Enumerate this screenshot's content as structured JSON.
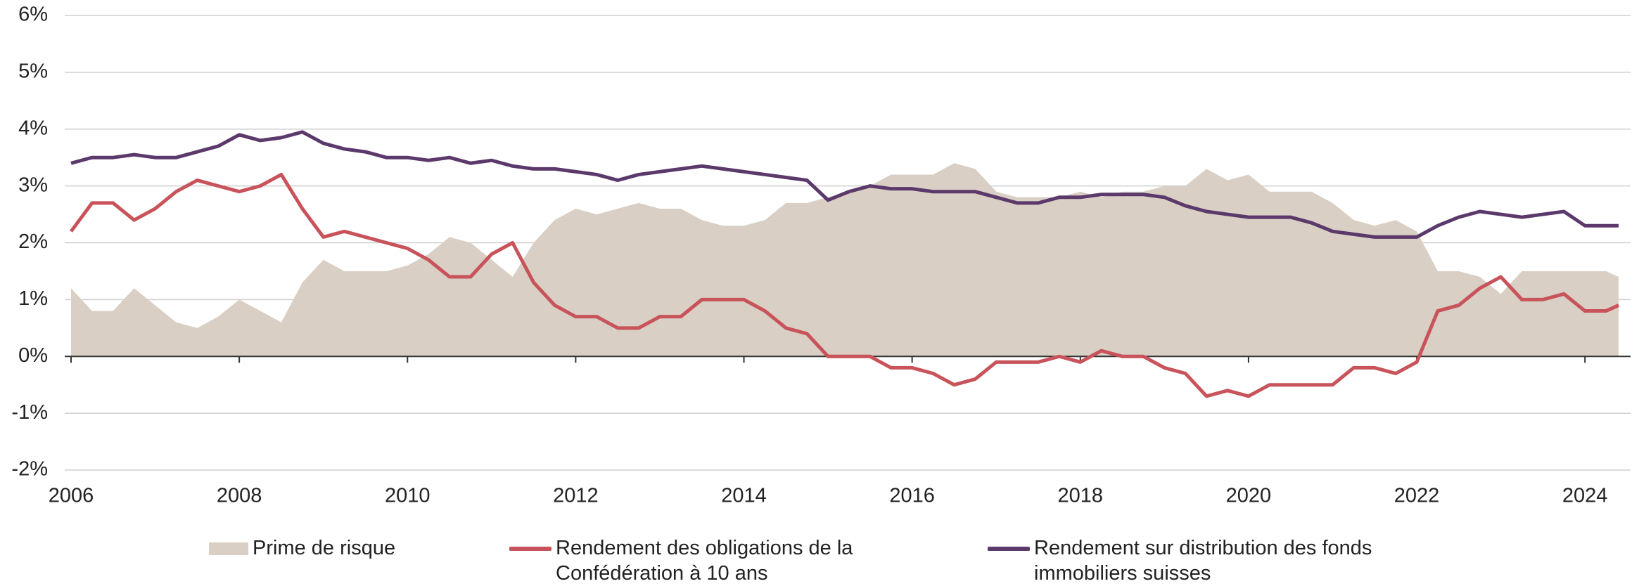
{
  "chart_data": {
    "type": "line",
    "x": [
      2006,
      2006.25,
      2006.5,
      2006.75,
      2007,
      2007.25,
      2007.5,
      2007.75,
      2008,
      2008.25,
      2008.5,
      2008.75,
      2009,
      2009.25,
      2009.5,
      2009.75,
      2010,
      2010.25,
      2010.5,
      2010.75,
      2011,
      2011.25,
      2011.5,
      2011.75,
      2012,
      2012.25,
      2012.5,
      2012.75,
      2013,
      2013.25,
      2013.5,
      2013.75,
      2014,
      2014.25,
      2014.5,
      2014.75,
      2015,
      2015.25,
      2015.5,
      2015.75,
      2016,
      2016.25,
      2016.5,
      2016.75,
      2017,
      2017.25,
      2017.5,
      2017.75,
      2018,
      2018.25,
      2018.5,
      2018.75,
      2019,
      2019.25,
      2019.5,
      2019.75,
      2020,
      2020.25,
      2020.5,
      2020.75,
      2021,
      2021.25,
      2021.5,
      2021.75,
      2022,
      2022.25,
      2022.5,
      2022.75,
      2023,
      2023.25,
      2023.5,
      2023.75,
      2024,
      2024.25,
      2024.4
    ],
    "series": [
      {
        "name": "Prime de risque",
        "type": "area",
        "color": "#d9cfc4",
        "values": [
          1.2,
          0.8,
          0.8,
          1.2,
          0.9,
          0.6,
          0.5,
          0.7,
          1.0,
          0.8,
          0.6,
          1.3,
          1.7,
          1.5,
          1.5,
          1.5,
          1.6,
          1.8,
          2.1,
          2.0,
          1.7,
          1.4,
          2.0,
          2.4,
          2.6,
          2.5,
          2.6,
          2.7,
          2.6,
          2.6,
          2.4,
          2.3,
          2.3,
          2.4,
          2.7,
          2.7,
          2.8,
          2.9,
          3.0,
          3.2,
          3.2,
          3.2,
          3.4,
          3.3,
          2.9,
          2.8,
          2.8,
          2.8,
          2.9,
          2.8,
          2.9,
          2.9,
          3.0,
          3.0,
          3.3,
          3.1,
          3.2,
          2.9,
          2.9,
          2.9,
          2.7,
          2.4,
          2.3,
          2.4,
          2.2,
          1.5,
          1.5,
          1.4,
          1.1,
          1.5,
          1.5,
          1.5,
          1.5,
          1.5,
          1.4
        ]
      },
      {
        "name": "Rendement des obligations de la Confédération à 10 ans",
        "type": "line",
        "color": "#c8535a",
        "values": [
          2.2,
          2.7,
          2.7,
          2.4,
          2.6,
          2.9,
          3.1,
          3.0,
          2.9,
          3.0,
          3.2,
          2.6,
          2.1,
          2.2,
          2.1,
          2.0,
          1.9,
          1.7,
          1.4,
          1.4,
          1.8,
          2.0,
          1.3,
          0.9,
          0.7,
          0.7,
          0.5,
          0.5,
          0.7,
          0.7,
          1.0,
          1.0,
          1.0,
          0.8,
          0.5,
          0.4,
          0.0,
          0.0,
          0.0,
          -0.2,
          -0.2,
          -0.3,
          -0.5,
          -0.4,
          -0.1,
          -0.1,
          -0.1,
          0.0,
          -0.1,
          0.1,
          0.0,
          0.0,
          -0.2,
          -0.3,
          -0.7,
          -0.6,
          -0.7,
          -0.5,
          -0.5,
          -0.5,
          -0.5,
          -0.2,
          -0.2,
          -0.3,
          -0.1,
          0.8,
          0.9,
          1.2,
          1.4,
          1.0,
          1.0,
          1.1,
          0.8,
          0.8,
          0.9
        ]
      },
      {
        "name": "Rendement sur distribution des fonds immobiliers suisses",
        "type": "line",
        "color": "#5b3a6b",
        "values": [
          3.4,
          3.5,
          3.5,
          3.55,
          3.5,
          3.5,
          3.6,
          3.7,
          3.9,
          3.8,
          3.85,
          3.95,
          3.75,
          3.65,
          3.6,
          3.5,
          3.5,
          3.45,
          3.5,
          3.4,
          3.45,
          3.35,
          3.3,
          3.3,
          3.25,
          3.2,
          3.1,
          3.2,
          3.25,
          3.3,
          3.35,
          3.3,
          3.25,
          3.2,
          3.15,
          3.1,
          2.75,
          2.9,
          3.0,
          2.95,
          2.95,
          2.9,
          2.9,
          2.9,
          2.8,
          2.7,
          2.7,
          2.8,
          2.8,
          2.85,
          2.85,
          2.85,
          2.8,
          2.65,
          2.55,
          2.5,
          2.45,
          2.45,
          2.45,
          2.35,
          2.2,
          2.15,
          2.1,
          2.1,
          2.1,
          2.3,
          2.45,
          2.55,
          2.5,
          2.45,
          2.5,
          2.55,
          2.3,
          2.3,
          2.3
        ]
      }
    ],
    "xlim": [
      2006,
      2024.4
    ],
    "xticks": [
      2006,
      2008,
      2010,
      2012,
      2014,
      2016,
      2018,
      2020,
      2022,
      2024
    ],
    "ylim": [
      -2,
      6
    ],
    "yticks": [
      {
        "value": -2,
        "label": "-2%"
      },
      {
        "value": -1,
        "label": "-1%"
      },
      {
        "value": 0,
        "label": "0%"
      },
      {
        "value": 1,
        "label": "1%"
      },
      {
        "value": 2,
        "label": "2%"
      },
      {
        "value": 3,
        "label": "3%"
      },
      {
        "value": 4,
        "label": "4%"
      },
      {
        "value": 5,
        "label": "5%"
      },
      {
        "value": 6,
        "label": "6%"
      }
    ],
    "grid": true,
    "legend": "bottom"
  }
}
